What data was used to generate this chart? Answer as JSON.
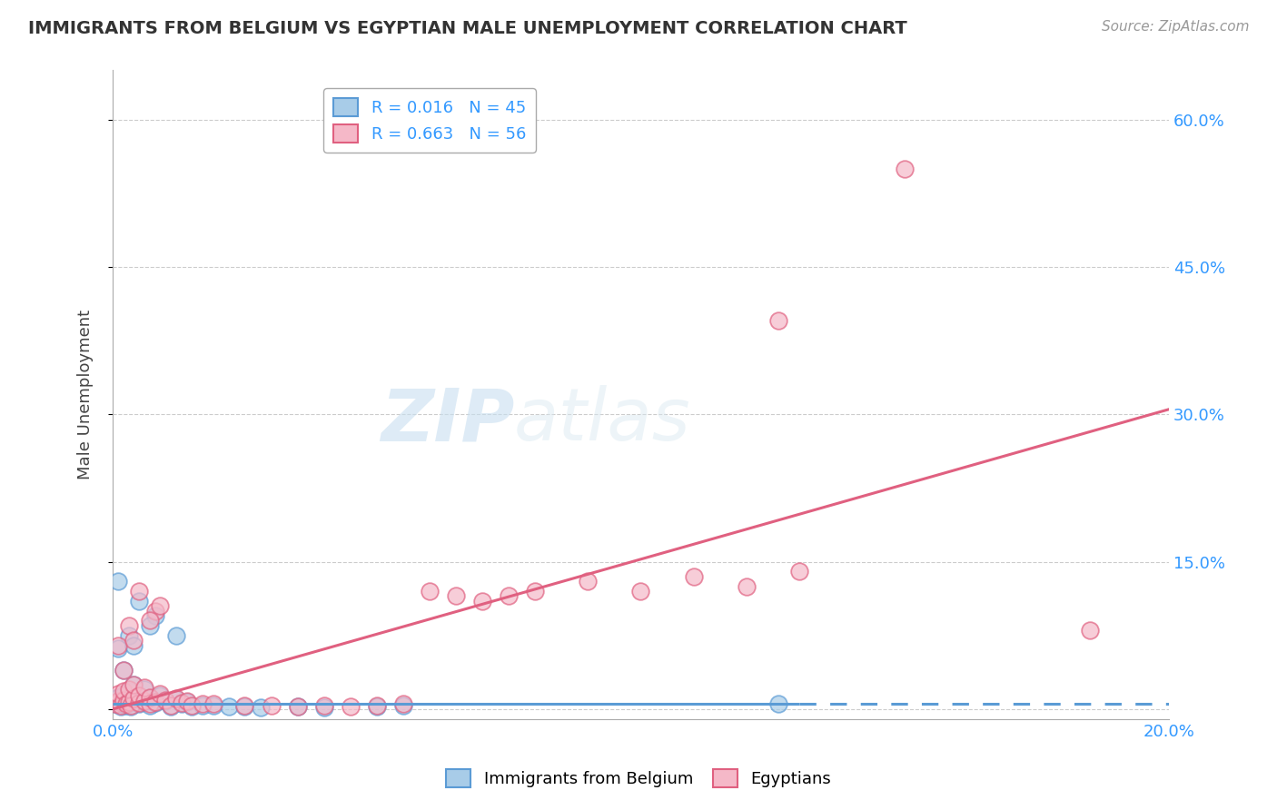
{
  "title": "IMMIGRANTS FROM BELGIUM VS EGYPTIAN MALE UNEMPLOYMENT CORRELATION CHART",
  "source": "Source: ZipAtlas.com",
  "ylabel": "Male Unemployment",
  "legend_label1": "Immigrants from Belgium",
  "legend_label2": "Egyptians",
  "r1": 0.016,
  "n1": 45,
  "r2": 0.663,
  "n2": 56,
  "color1": "#a8cce8",
  "color2": "#f5b8c8",
  "line_color1": "#5b9bd5",
  "line_color2": "#e06080",
  "xlim": [
    0.0,
    0.2
  ],
  "ylim": [
    -0.01,
    0.65
  ],
  "yticks": [
    0.0,
    0.15,
    0.3,
    0.45,
    0.6
  ],
  "watermark_zip": "ZIP",
  "watermark_atlas": "atlas",
  "background_color": "#ffffff",
  "blue_line_x": [
    0.0,
    0.13,
    0.2
  ],
  "blue_line_y": [
    0.005,
    0.005,
    0.005
  ],
  "pink_line_x": [
    0.0,
    0.2
  ],
  "pink_line_y": [
    0.0,
    0.305
  ],
  "scatter1_x": [
    0.0005,
    0.001,
    0.001,
    0.0015,
    0.002,
    0.002,
    0.0025,
    0.003,
    0.003,
    0.0035,
    0.004,
    0.004,
    0.005,
    0.005,
    0.006,
    0.006,
    0.007,
    0.007,
    0.008,
    0.009,
    0.01,
    0.011,
    0.012,
    0.013,
    0.014,
    0.015,
    0.017,
    0.019,
    0.022,
    0.025,
    0.028,
    0.035,
    0.04,
    0.05,
    0.055,
    0.001,
    0.003,
    0.005,
    0.008,
    0.012,
    0.002,
    0.004,
    0.007,
    0.126,
    0.001
  ],
  "scatter1_y": [
    0.005,
    0.005,
    0.012,
    0.003,
    0.008,
    0.015,
    0.004,
    0.006,
    0.018,
    0.003,
    0.009,
    0.025,
    0.005,
    0.013,
    0.007,
    0.02,
    0.004,
    0.011,
    0.006,
    0.014,
    0.008,
    0.003,
    0.01,
    0.005,
    0.007,
    0.003,
    0.004,
    0.004,
    0.003,
    0.003,
    0.002,
    0.003,
    0.002,
    0.003,
    0.004,
    0.062,
    0.075,
    0.11,
    0.095,
    0.075,
    0.04,
    0.065,
    0.085,
    0.005,
    0.13
  ],
  "scatter2_x": [
    0.0005,
    0.001,
    0.001,
    0.0015,
    0.002,
    0.002,
    0.0025,
    0.003,
    0.003,
    0.0035,
    0.004,
    0.004,
    0.005,
    0.005,
    0.006,
    0.006,
    0.007,
    0.007,
    0.008,
    0.009,
    0.01,
    0.011,
    0.012,
    0.013,
    0.014,
    0.015,
    0.017,
    0.019,
    0.025,
    0.03,
    0.035,
    0.04,
    0.045,
    0.05,
    0.055,
    0.001,
    0.003,
    0.005,
    0.008,
    0.002,
    0.004,
    0.007,
    0.009,
    0.06,
    0.065,
    0.07,
    0.075,
    0.08,
    0.09,
    0.1,
    0.11,
    0.12,
    0.13,
    0.126,
    0.15,
    0.185
  ],
  "scatter2_y": [
    0.005,
    0.008,
    0.016,
    0.004,
    0.009,
    0.018,
    0.005,
    0.007,
    0.02,
    0.004,
    0.011,
    0.025,
    0.006,
    0.014,
    0.008,
    0.022,
    0.005,
    0.012,
    0.007,
    0.016,
    0.009,
    0.004,
    0.011,
    0.006,
    0.008,
    0.004,
    0.005,
    0.005,
    0.004,
    0.004,
    0.003,
    0.004,
    0.003,
    0.004,
    0.005,
    0.065,
    0.085,
    0.12,
    0.1,
    0.04,
    0.07,
    0.09,
    0.105,
    0.12,
    0.115,
    0.11,
    0.115,
    0.12,
    0.13,
    0.12,
    0.135,
    0.125,
    0.14,
    0.395,
    0.55,
    0.08
  ]
}
